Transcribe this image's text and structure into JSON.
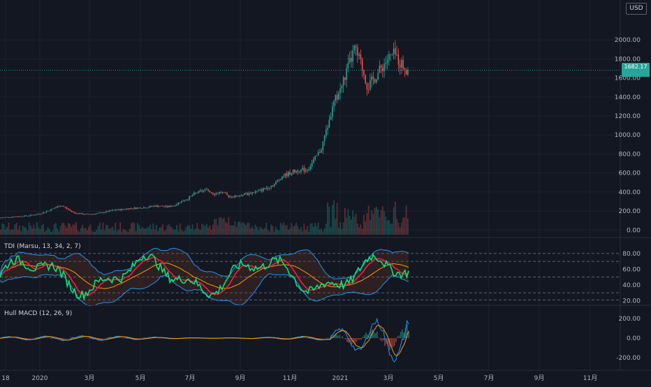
{
  "currency": "USD",
  "price_axis_top_label": "2",
  "last_price": {
    "line1": "1682.17",
    "line2": "",
    "color": "#26a69a"
  },
  "colors": {
    "up": "#26a69a",
    "down": "#ef5350",
    "rsi_line": "#00e676",
    "signal_line": "#ff1744",
    "band": "#2196f3",
    "mid": "#ff9800"
  },
  "time_axis": [
    "18",
    "2020",
    "3月",
    "5月",
    "7月",
    "9月",
    "11月",
    "2021",
    "3月",
    "5月",
    "7月",
    "9月",
    "11月"
  ],
  "chart_data": [
    {
      "type": "candlestick",
      "panel": "price",
      "yticks": [
        "2000.00",
        "1800.00",
        "1600.00",
        "1400.00",
        "1200.00",
        "1000.00",
        "800.00",
        "600.00",
        "400.00",
        "200.00",
        "0.00"
      ],
      "ylim": [
        -20,
        2200
      ],
      "close": [
        130,
        135,
        140,
        145,
        150,
        160,
        175,
        200,
        230,
        260,
        220,
        180,
        170,
        165,
        170,
        180,
        195,
        210,
        215,
        225,
        230,
        235,
        240,
        255,
        250,
        245,
        260,
        300,
        330,
        380,
        410,
        420,
        380,
        400,
        360,
        350,
        370,
        380,
        400,
        420,
        450,
        480,
        560,
        590,
        620,
        630,
        640,
        740,
        850,
        1100,
        1350,
        1500,
        1700,
        1900,
        1750,
        1500,
        1600,
        1700,
        1800,
        1850,
        1750,
        1682
      ]
    },
    {
      "type": "line",
      "panel": "tdi",
      "title": "TDI (Marsu, 13, 34, 2, 7)",
      "yticks": [
        "80.00",
        "60.00",
        "40.00",
        "20.00"
      ],
      "ylim": [
        15,
        95
      ],
      "levels": [
        80,
        70,
        50,
        30,
        21
      ]
    },
    {
      "type": "line",
      "panel": "macd",
      "title": "Hull MACD (12, 26, 9)",
      "yticks": [
        "200.00",
        "0.00",
        "-200.00"
      ],
      "ylim": [
        -300,
        300
      ]
    }
  ]
}
